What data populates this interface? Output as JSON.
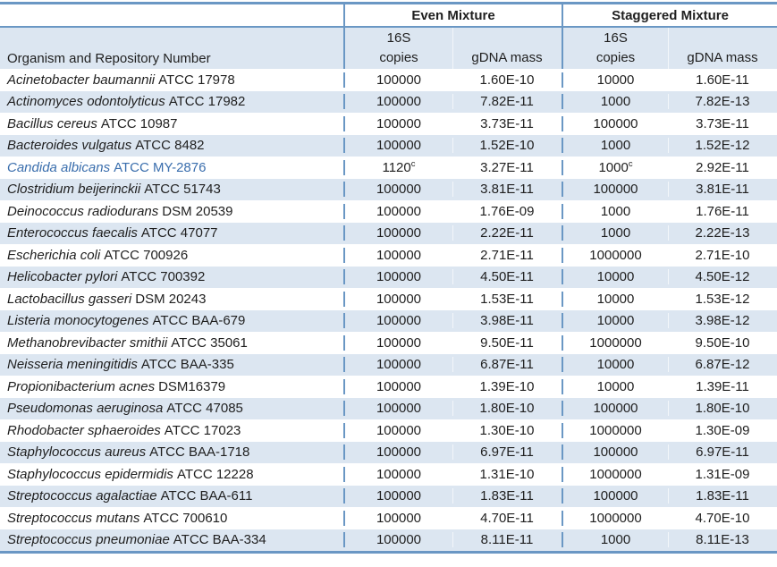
{
  "colors": {
    "border": "#6A97C4",
    "band": "#DCE6F1",
    "highlight_text": "#3A6EAD",
    "text": "#1F1F1F"
  },
  "table": {
    "group_headers": [
      {
        "label": "Even Mixture"
      },
      {
        "label": "Staggered Mixture"
      }
    ],
    "column_headers": {
      "organism": "Organism and Repository Number",
      "copies_line1": "16S",
      "copies_line2": "copies",
      "mass": "gDNA mass"
    },
    "footnote_marker": "c",
    "rows": [
      {
        "name": "Acinetobacter baumannii",
        "repo": "ATCC 17978",
        "even_copies": "100000",
        "even_copies_sup": "",
        "even_mass": "1.60E-10",
        "stag_copies": "10000",
        "stag_copies_sup": "",
        "stag_mass": "1.60E-11",
        "highlight": false
      },
      {
        "name": "Actinomyces odontolyticus",
        "repo": "ATCC 17982",
        "even_copies": "100000",
        "even_copies_sup": "",
        "even_mass": "7.82E-11",
        "stag_copies": "1000",
        "stag_copies_sup": "",
        "stag_mass": "7.82E-13",
        "highlight": false
      },
      {
        "name": "Bacillus cereus",
        "repo": "ATCC 10987",
        "even_copies": "100000",
        "even_copies_sup": "",
        "even_mass": "3.73E-11",
        "stag_copies": "100000",
        "stag_copies_sup": "",
        "stag_mass": "3.73E-11",
        "highlight": false
      },
      {
        "name": "Bacteroides vulgatus",
        "repo": "ATCC 8482",
        "even_copies": "100000",
        "even_copies_sup": "",
        "even_mass": "1.52E-10",
        "stag_copies": "1000",
        "stag_copies_sup": "",
        "stag_mass": "1.52E-12",
        "highlight": false
      },
      {
        "name": "Candida albicans",
        "repo": "ATCC MY-2876",
        "even_copies": "1120",
        "even_copies_sup": "c",
        "even_mass": "3.27E-11",
        "stag_copies": "1000",
        "stag_copies_sup": "c",
        "stag_mass": "2.92E-11",
        "highlight": true
      },
      {
        "name": "Clostridium beijerinckii",
        "repo": "ATCC 51743",
        "even_copies": "100000",
        "even_copies_sup": "",
        "even_mass": "3.81E-11",
        "stag_copies": "100000",
        "stag_copies_sup": "",
        "stag_mass": "3.81E-11",
        "highlight": false
      },
      {
        "name": "Deinococcus radiodurans",
        "repo": "DSM 20539",
        "even_copies": "100000",
        "even_copies_sup": "",
        "even_mass": "1.76E-09",
        "stag_copies": "1000",
        "stag_copies_sup": "",
        "stag_mass": "1.76E-11",
        "highlight": false
      },
      {
        "name": "Enterococcus faecalis",
        "repo": "ATCC 47077",
        "even_copies": "100000",
        "even_copies_sup": "",
        "even_mass": "2.22E-11",
        "stag_copies": "1000",
        "stag_copies_sup": "",
        "stag_mass": "2.22E-13",
        "highlight": false
      },
      {
        "name": "Escherichia coli",
        "repo": "ATCC 700926",
        "even_copies": "100000",
        "even_copies_sup": "",
        "even_mass": "2.71E-11",
        "stag_copies": "1000000",
        "stag_copies_sup": "",
        "stag_mass": "2.71E-10",
        "highlight": false
      },
      {
        "name": "Helicobacter pylori",
        "repo": "ATCC 700392",
        "even_copies": "100000",
        "even_copies_sup": "",
        "even_mass": "4.50E-11",
        "stag_copies": "10000",
        "stag_copies_sup": "",
        "stag_mass": "4.50E-12",
        "highlight": false
      },
      {
        "name": "Lactobacillus gasseri",
        "repo": "DSM 20243",
        "even_copies": "100000",
        "even_copies_sup": "",
        "even_mass": "1.53E-11",
        "stag_copies": "10000",
        "stag_copies_sup": "",
        "stag_mass": "1.53E-12",
        "highlight": false
      },
      {
        "name": "Listeria monocytogenes",
        "repo": "ATCC BAA-679",
        "even_copies": "100000",
        "even_copies_sup": "",
        "even_mass": "3.98E-11",
        "stag_copies": "10000",
        "stag_copies_sup": "",
        "stag_mass": "3.98E-12",
        "highlight": false
      },
      {
        "name": "Methanobrevibacter smithii",
        "repo": "ATCC 35061",
        "even_copies": "100000",
        "even_copies_sup": "",
        "even_mass": "9.50E-11",
        "stag_copies": "1000000",
        "stag_copies_sup": "",
        "stag_mass": "9.50E-10",
        "highlight": false
      },
      {
        "name": "Neisseria meningitidis",
        "repo": "ATCC BAA-335",
        "even_copies": "100000",
        "even_copies_sup": "",
        "even_mass": "6.87E-11",
        "stag_copies": "10000",
        "stag_copies_sup": "",
        "stag_mass": "6.87E-12",
        "highlight": false
      },
      {
        "name": "Propionibacterium acnes",
        "repo": "DSM16379",
        "even_copies": "100000",
        "even_copies_sup": "",
        "even_mass": "1.39E-10",
        "stag_copies": "10000",
        "stag_copies_sup": "",
        "stag_mass": "1.39E-11",
        "highlight": false
      },
      {
        "name": "Pseudomonas aeruginosa",
        "repo": "ATCC 47085",
        "even_copies": "100000",
        "even_copies_sup": "",
        "even_mass": "1.80E-10",
        "stag_copies": "100000",
        "stag_copies_sup": "",
        "stag_mass": "1.80E-10",
        "highlight": false
      },
      {
        "name": "Rhodobacter sphaeroides",
        "repo": "ATCC 17023",
        "even_copies": "100000",
        "even_copies_sup": "",
        "even_mass": "1.30E-10",
        "stag_copies": "1000000",
        "stag_copies_sup": "",
        "stag_mass": "1.30E-09",
        "highlight": false
      },
      {
        "name": "Staphylococcus aureus",
        "repo": "ATCC BAA-1718",
        "even_copies": "100000",
        "even_copies_sup": "",
        "even_mass": "6.97E-11",
        "stag_copies": "100000",
        "stag_copies_sup": "",
        "stag_mass": "6.97E-11",
        "highlight": false
      },
      {
        "name": "Staphylococcus epidermidis",
        "repo": "ATCC 12228",
        "even_copies": "100000",
        "even_copies_sup": "",
        "even_mass": "1.31E-10",
        "stag_copies": "1000000",
        "stag_copies_sup": "",
        "stag_mass": "1.31E-09",
        "highlight": false
      },
      {
        "name": "Streptococcus agalactiae",
        "repo": "ATCC BAA-611",
        "even_copies": "100000",
        "even_copies_sup": "",
        "even_mass": "1.83E-11",
        "stag_copies": "100000",
        "stag_copies_sup": "",
        "stag_mass": "1.83E-11",
        "highlight": false
      },
      {
        "name": "Streptococcus mutans",
        "repo": "ATCC 700610",
        "even_copies": "100000",
        "even_copies_sup": "",
        "even_mass": "4.70E-11",
        "stag_copies": "1000000",
        "stag_copies_sup": "",
        "stag_mass": "4.70E-10",
        "highlight": false
      },
      {
        "name": "Streptococcus pneumoniae",
        "repo": "ATCC BAA-334",
        "even_copies": "100000",
        "even_copies_sup": "",
        "even_mass": "8.11E-11",
        "stag_copies": "1000",
        "stag_copies_sup": "",
        "stag_mass": "8.11E-13",
        "highlight": false
      }
    ]
  }
}
